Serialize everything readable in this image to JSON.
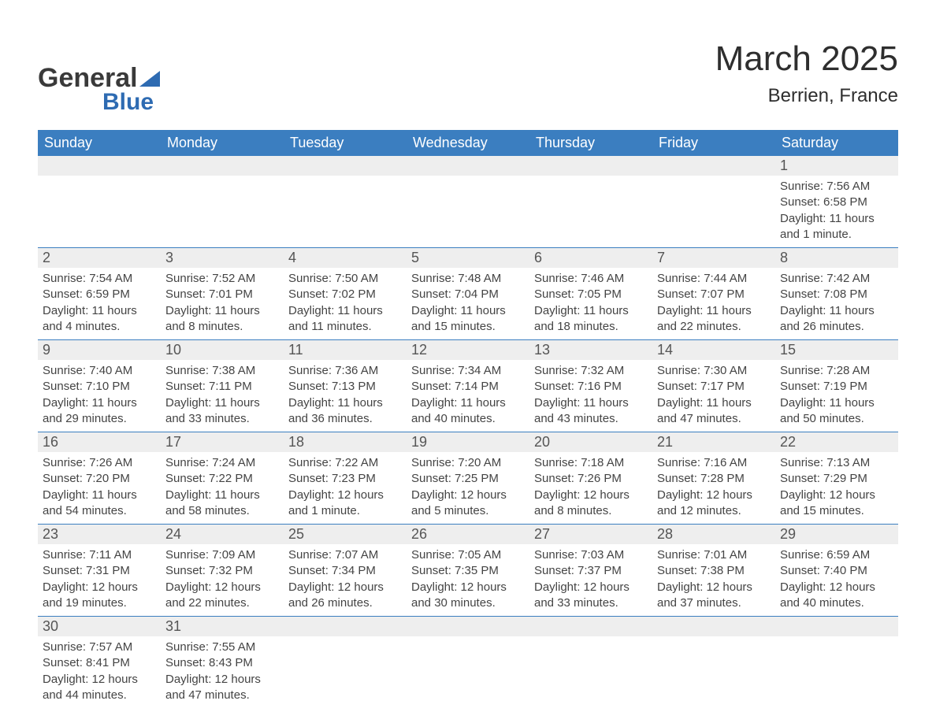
{
  "logo": {
    "text_top": "General",
    "text_bottom": "Blue",
    "color_dark": "#3a3a3a",
    "color_blue": "#2e6bb2"
  },
  "header": {
    "title": "March 2025",
    "location": "Berrien, France"
  },
  "colors": {
    "header_bg": "#3b7ec0",
    "header_text": "#ffffff",
    "daynum_bg": "#eeeeee",
    "border": "#3b7ec0",
    "text": "#444444"
  },
  "day_headers": [
    "Sunday",
    "Monday",
    "Tuesday",
    "Wednesday",
    "Thursday",
    "Friday",
    "Saturday"
  ],
  "sunrise_label": "Sunrise: ",
  "sunset_label": "Sunset: ",
  "daylight_label": "Daylight: ",
  "weeks": [
    [
      {
        "empty": true
      },
      {
        "empty": true
      },
      {
        "empty": true
      },
      {
        "empty": true
      },
      {
        "empty": true
      },
      {
        "empty": true
      },
      {
        "day": "1",
        "sunrise": "7:56 AM",
        "sunset": "6:58 PM",
        "daylight": "11 hours and 1 minute."
      }
    ],
    [
      {
        "day": "2",
        "sunrise": "7:54 AM",
        "sunset": "6:59 PM",
        "daylight": "11 hours and 4 minutes."
      },
      {
        "day": "3",
        "sunrise": "7:52 AM",
        "sunset": "7:01 PM",
        "daylight": "11 hours and 8 minutes."
      },
      {
        "day": "4",
        "sunrise": "7:50 AM",
        "sunset": "7:02 PM",
        "daylight": "11 hours and 11 minutes."
      },
      {
        "day": "5",
        "sunrise": "7:48 AM",
        "sunset": "7:04 PM",
        "daylight": "11 hours and 15 minutes."
      },
      {
        "day": "6",
        "sunrise": "7:46 AM",
        "sunset": "7:05 PM",
        "daylight": "11 hours and 18 minutes."
      },
      {
        "day": "7",
        "sunrise": "7:44 AM",
        "sunset": "7:07 PM",
        "daylight": "11 hours and 22 minutes."
      },
      {
        "day": "8",
        "sunrise": "7:42 AM",
        "sunset": "7:08 PM",
        "daylight": "11 hours and 26 minutes."
      }
    ],
    [
      {
        "day": "9",
        "sunrise": "7:40 AM",
        "sunset": "7:10 PM",
        "daylight": "11 hours and 29 minutes."
      },
      {
        "day": "10",
        "sunrise": "7:38 AM",
        "sunset": "7:11 PM",
        "daylight": "11 hours and 33 minutes."
      },
      {
        "day": "11",
        "sunrise": "7:36 AM",
        "sunset": "7:13 PM",
        "daylight": "11 hours and 36 minutes."
      },
      {
        "day": "12",
        "sunrise": "7:34 AM",
        "sunset": "7:14 PM",
        "daylight": "11 hours and 40 minutes."
      },
      {
        "day": "13",
        "sunrise": "7:32 AM",
        "sunset": "7:16 PM",
        "daylight": "11 hours and 43 minutes."
      },
      {
        "day": "14",
        "sunrise": "7:30 AM",
        "sunset": "7:17 PM",
        "daylight": "11 hours and 47 minutes."
      },
      {
        "day": "15",
        "sunrise": "7:28 AM",
        "sunset": "7:19 PM",
        "daylight": "11 hours and 50 minutes."
      }
    ],
    [
      {
        "day": "16",
        "sunrise": "7:26 AM",
        "sunset": "7:20 PM",
        "daylight": "11 hours and 54 minutes."
      },
      {
        "day": "17",
        "sunrise": "7:24 AM",
        "sunset": "7:22 PM",
        "daylight": "11 hours and 58 minutes."
      },
      {
        "day": "18",
        "sunrise": "7:22 AM",
        "sunset": "7:23 PM",
        "daylight": "12 hours and 1 minute."
      },
      {
        "day": "19",
        "sunrise": "7:20 AM",
        "sunset": "7:25 PM",
        "daylight": "12 hours and 5 minutes."
      },
      {
        "day": "20",
        "sunrise": "7:18 AM",
        "sunset": "7:26 PM",
        "daylight": "12 hours and 8 minutes."
      },
      {
        "day": "21",
        "sunrise": "7:16 AM",
        "sunset": "7:28 PM",
        "daylight": "12 hours and 12 minutes."
      },
      {
        "day": "22",
        "sunrise": "7:13 AM",
        "sunset": "7:29 PM",
        "daylight": "12 hours and 15 minutes."
      }
    ],
    [
      {
        "day": "23",
        "sunrise": "7:11 AM",
        "sunset": "7:31 PM",
        "daylight": "12 hours and 19 minutes."
      },
      {
        "day": "24",
        "sunrise": "7:09 AM",
        "sunset": "7:32 PM",
        "daylight": "12 hours and 22 minutes."
      },
      {
        "day": "25",
        "sunrise": "7:07 AM",
        "sunset": "7:34 PM",
        "daylight": "12 hours and 26 minutes."
      },
      {
        "day": "26",
        "sunrise": "7:05 AM",
        "sunset": "7:35 PM",
        "daylight": "12 hours and 30 minutes."
      },
      {
        "day": "27",
        "sunrise": "7:03 AM",
        "sunset": "7:37 PM",
        "daylight": "12 hours and 33 minutes."
      },
      {
        "day": "28",
        "sunrise": "7:01 AM",
        "sunset": "7:38 PM",
        "daylight": "12 hours and 37 minutes."
      },
      {
        "day": "29",
        "sunrise": "6:59 AM",
        "sunset": "7:40 PM",
        "daylight": "12 hours and 40 minutes."
      }
    ],
    [
      {
        "day": "30",
        "sunrise": "7:57 AM",
        "sunset": "8:41 PM",
        "daylight": "12 hours and 44 minutes."
      },
      {
        "day": "31",
        "sunrise": "7:55 AM",
        "sunset": "8:43 PM",
        "daylight": "12 hours and 47 minutes."
      },
      {
        "empty": true
      },
      {
        "empty": true
      },
      {
        "empty": true
      },
      {
        "empty": true
      },
      {
        "empty": true
      }
    ]
  ]
}
